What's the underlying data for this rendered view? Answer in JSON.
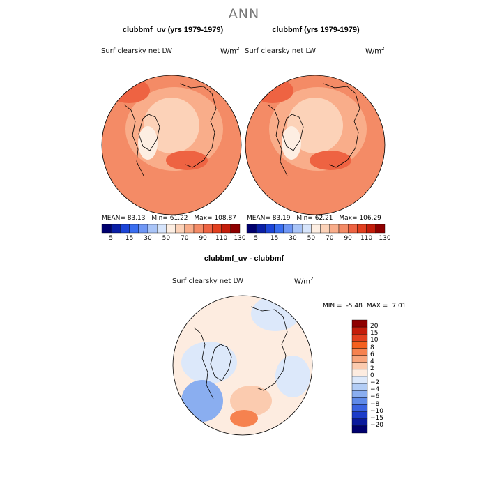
{
  "chart_data": [
    {
      "type": "heatmap",
      "projection": "north polar stereographic",
      "title": "clubbmf_uv (yrs 1979-1979)",
      "variable": "Surf clearsky net LW",
      "units": "W/m",
      "units_exp": "2",
      "stats": {
        "mean": "MEAN=  83.13",
        "min": "Min=  61.22",
        "max": "Max=  108.87"
      },
      "colorbar_levels": [
        "5",
        "15",
        "30",
        "50",
        "70",
        "90",
        "110",
        "130"
      ],
      "colorbar_colors": [
        "#00006e",
        "#0a1fa6",
        "#1c45d8",
        "#3a6ef0",
        "#6f97f5",
        "#a9c4f7",
        "#d6e4fb",
        "#fdeee2",
        "#fcd2b8",
        "#f9ad8a",
        "#f48b66",
        "#ee6342",
        "#e2401f",
        "#c41d0b",
        "#8e0000"
      ]
    },
    {
      "type": "heatmap",
      "projection": "north polar stereographic",
      "title": "clubbmf (yrs 1979-1979)",
      "variable": "Surf clearsky net LW",
      "units": "W/m",
      "units_exp": "2",
      "stats": {
        "mean": "MEAN=  83.19",
        "min": "Min=  62.21",
        "max": "Max=  106.29"
      },
      "colorbar_levels": [
        "5",
        "15",
        "30",
        "50",
        "70",
        "90",
        "110",
        "130"
      ],
      "colorbar_colors": [
        "#00006e",
        "#0a1fa6",
        "#1c45d8",
        "#3a6ef0",
        "#6f97f5",
        "#a9c4f7",
        "#d6e4fb",
        "#fdeee2",
        "#fcd2b8",
        "#f9ad8a",
        "#f48b66",
        "#ee6342",
        "#e2401f",
        "#c41d0b",
        "#8e0000"
      ]
    },
    {
      "type": "heatmap",
      "projection": "north polar stereographic",
      "title": "clubbmf_uv - clubbmf",
      "variable": "Surf clearsky net LW",
      "units": "W/m",
      "units_exp": "2",
      "stats": {
        "min_label": "MIN =",
        "min": "-5.48",
        "max_label": "MAX =",
        "max": "7.01"
      },
      "colorbar_levels": [
        "20",
        "15",
        "10",
        "8",
        "6",
        "4",
        "2",
        "0",
        "−2",
        "−4",
        "−6",
        "−8",
        "−10",
        "−15",
        "−20"
      ],
      "colorbar_colors": [
        "#8e0000",
        "#c41d0b",
        "#e2401f",
        "#f4601f",
        "#f6824f",
        "#f8a57c",
        "#fbcbaf",
        "#fdece0",
        "#dce8fa",
        "#b3cdf5",
        "#8aaef0",
        "#5f8ae8",
        "#3a63e0",
        "#1c3cc8",
        "#0a1a9c",
        "#00006e"
      ]
    }
  ],
  "header": {
    "title": "ANN"
  }
}
